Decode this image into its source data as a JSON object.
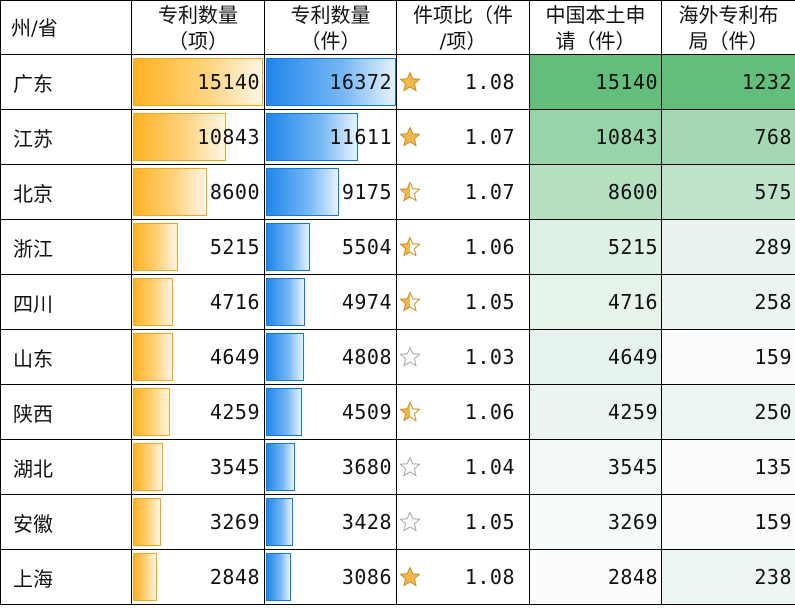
{
  "headers": {
    "province": "州/省",
    "patents_items": [
      "专利数量",
      "（项）"
    ],
    "patents_pieces": [
      "专利数量",
      "（件）"
    ],
    "ratio": [
      "件项比（件",
      "/项）"
    ],
    "domestic": [
      "中国本土申",
      "请（件）"
    ],
    "overseas": [
      "海外专利布",
      "局（件）"
    ]
  },
  "colors": {
    "orange_bar": "#ffb224",
    "blue_bar": "#1f86ea",
    "heat_high": "#63be7b",
    "heat_low": "#fcfcff",
    "star_gold": "#f2b84b",
    "star_empty": "#ffffff"
  },
  "rows": [
    {
      "province": "广东",
      "items": "15140",
      "pieces": "16372",
      "star": "full",
      "ratio": "1.08",
      "domestic": "15140",
      "overseas": "1232"
    },
    {
      "province": "江苏",
      "items": "10843",
      "pieces": "11611",
      "star": "full",
      "ratio": "1.07",
      "domestic": "10843",
      "overseas": "768"
    },
    {
      "province": "北京",
      "items": "8600",
      "pieces": "9175",
      "star": "half",
      "ratio": "1.07",
      "domestic": "8600",
      "overseas": "575"
    },
    {
      "province": "浙江",
      "items": "5215",
      "pieces": "5504",
      "star": "half",
      "ratio": "1.06",
      "domestic": "5215",
      "overseas": "289"
    },
    {
      "province": "四川",
      "items": "4716",
      "pieces": "4974",
      "star": "half",
      "ratio": "1.05",
      "domestic": "4716",
      "overseas": "258"
    },
    {
      "province": "山东",
      "items": "4649",
      "pieces": "4808",
      "star": "empty",
      "ratio": "1.03",
      "domestic": "4649",
      "overseas": "159"
    },
    {
      "province": "陕西",
      "items": "4259",
      "pieces": "4509",
      "star": "half",
      "ratio": "1.06",
      "domestic": "4259",
      "overseas": "250"
    },
    {
      "province": "湖北",
      "items": "3545",
      "pieces": "3680",
      "star": "empty",
      "ratio": "1.04",
      "domestic": "3545",
      "overseas": "135"
    },
    {
      "province": "安徽",
      "items": "3269",
      "pieces": "3428",
      "star": "empty",
      "ratio": "1.05",
      "domestic": "3269",
      "overseas": "159"
    },
    {
      "province": "上海",
      "items": "2848",
      "pieces": "3086",
      "star": "full",
      "ratio": "1.08",
      "domestic": "2848",
      "overseas": "238"
    }
  ]
}
